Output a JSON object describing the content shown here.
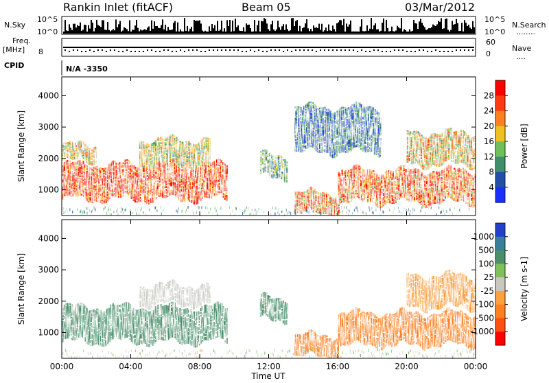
{
  "header": {
    "station": "Rankin Inlet (fitACF)",
    "beam": "Beam 05",
    "date": "03/Mar/2012"
  },
  "status_panels": {
    "nsky_label": "N.Sky",
    "nsearch_label": "N.Search",
    "noise_ticks": [
      "10^5",
      "10^0"
    ],
    "freq_label_1": "Freq.",
    "freq_label_2": "[MHz]",
    "freq_ticks": [
      "8"
    ],
    "nave_label": "Nave",
    "nave_ticks": [
      "60",
      "0"
    ],
    "cpid_label": "CPID",
    "cpid_value": "N/A -3350"
  },
  "x_axis": {
    "title": "Time UT",
    "ticks": [
      "00:00",
      "04:00",
      "08:00",
      "12:00",
      "16:00",
      "20:00",
      "00:00"
    ]
  },
  "colors": {
    "power_scale": [
      "#1a2fff",
      "#234ea8",
      "#3f8f6b",
      "#6fc05a",
      "#f0c020",
      "#ff8020",
      "#ff3a10",
      "#ff0000"
    ],
    "velocity_scale": [
      "#2440c8",
      "#3a7f9a",
      "#4a8f6a",
      "#7fc05a",
      "#c8c8c0",
      "#ffa040",
      "#ff8020",
      "#ff5010",
      "#ff0000"
    ]
  },
  "chart_data": [
    {
      "type": "heatmap",
      "title": "",
      "xlabel": "Time UT",
      "ylabel": "Slant Range [km]",
      "x_range": [
        "00:00",
        "00:00"
      ],
      "ylim": [
        180,
        4600
      ],
      "y_ticks": [
        "1000",
        "2000",
        "3000",
        "4000"
      ],
      "colorbar": {
        "label": "Power [dB]",
        "range": [
          0,
          32
        ],
        "ticks": [
          "28",
          "24",
          "20",
          "16",
          "12",
          "8",
          "4"
        ]
      },
      "echo_regions": [
        {
          "t_start": 0.0,
          "t_end": 9.5,
          "r_min": 700,
          "r_max": 1800,
          "level": 26
        },
        {
          "t_start": 0.0,
          "t_end": 2.0,
          "r_min": 1900,
          "r_max": 2400,
          "level": 18
        },
        {
          "t_start": 4.5,
          "t_end": 8.5,
          "r_min": 1800,
          "r_max": 2600,
          "level": 16
        },
        {
          "t_start": 11.5,
          "t_end": 13.0,
          "r_min": 1400,
          "r_max": 2100,
          "level": 12
        },
        {
          "t_start": 13.5,
          "t_end": 16.0,
          "r_min": 250,
          "r_max": 900,
          "level": 22
        },
        {
          "t_start": 16.0,
          "t_end": 24.0,
          "r_min": 600,
          "r_max": 1600,
          "level": 24
        },
        {
          "t_start": 20.0,
          "t_end": 24.0,
          "r_min": 1800,
          "r_max": 2800,
          "level": 18
        },
        {
          "t_start": 13.5,
          "t_end": 18.5,
          "r_min": 2200,
          "r_max": 3600,
          "level": 8
        }
      ]
    },
    {
      "type": "heatmap",
      "title": "",
      "xlabel": "Time UT",
      "ylabel": "Slant Range [km]",
      "x_range": [
        "00:00",
        "00:00"
      ],
      "ylim": [
        180,
        4600
      ],
      "y_ticks": [
        "1000",
        "2000",
        "3000",
        "4000"
      ],
      "colorbar": {
        "label": "Velocity [m s-1]",
        "range": [
          -1000,
          1000
        ],
        "ticks": [
          "1000",
          "500",
          "100",
          "25",
          "-25",
          "-100",
          "-500",
          "-1000"
        ]
      },
      "echo_regions": [
        {
          "t_start": 0.0,
          "t_end": 9.5,
          "r_min": 700,
          "r_max": 1800,
          "level": 60
        },
        {
          "t_start": 4.5,
          "t_end": 8.5,
          "r_min": 1900,
          "r_max": 2500,
          "level": 0
        },
        {
          "t_start": 11.5,
          "t_end": 13.0,
          "r_min": 1400,
          "r_max": 2100,
          "level": 60
        },
        {
          "t_start": 13.5,
          "t_end": 16.0,
          "r_min": 250,
          "r_max": 900,
          "level": -150
        },
        {
          "t_start": 16.0,
          "t_end": 24.0,
          "r_min": 600,
          "r_max": 1600,
          "level": -300
        },
        {
          "t_start": 20.0,
          "t_end": 24.0,
          "r_min": 1800,
          "r_max": 2800,
          "level": -80
        }
      ]
    }
  ]
}
